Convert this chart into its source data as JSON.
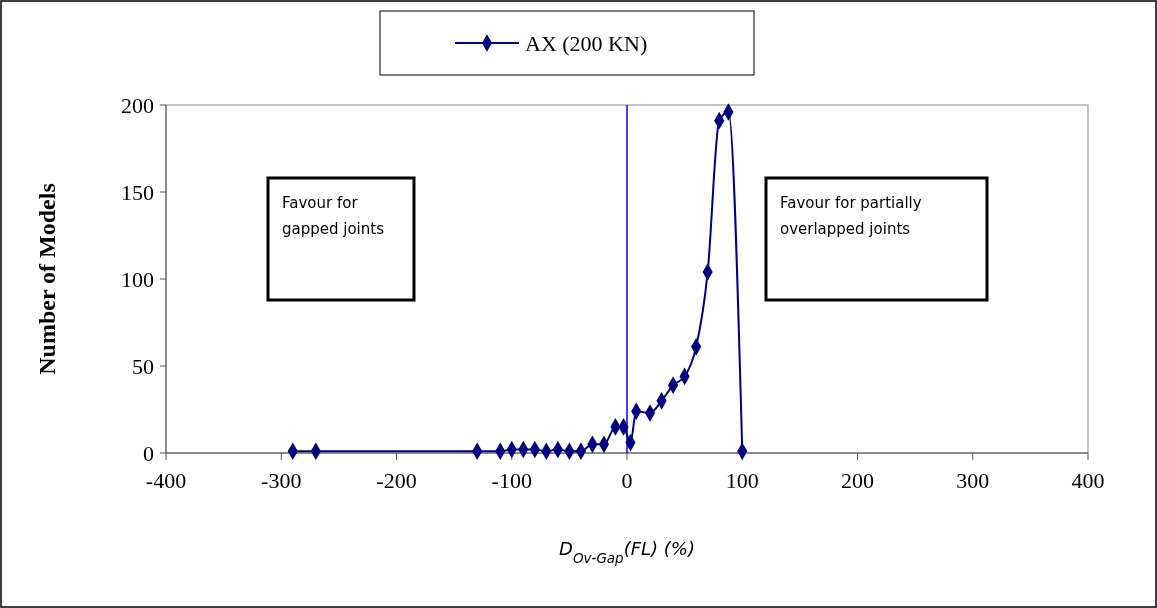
{
  "chart_data": {
    "type": "line",
    "xlabel": "D$_{Ov-Gap}$(FL) (%)",
    "ylabel": "Number of Models",
    "x": [
      -290,
      -270,
      -130,
      -110,
      -100,
      -90,
      -80,
      -70,
      -60,
      -50,
      -40,
      -30,
      -20,
      -10,
      -3,
      3,
      8,
      20,
      30,
      40,
      50,
      60,
      70,
      80,
      88,
      100
    ],
    "series": [
      {
        "name": "AX (200 KN)",
        "color": "#000080",
        "values": [
          1,
          1,
          1,
          1,
          2,
          2,
          2,
          1,
          2,
          1,
          1,
          5,
          5,
          15,
          15,
          6,
          24,
          23,
          30,
          39,
          44,
          61,
          104,
          191,
          196,
          1
        ]
      }
    ],
    "xlim": [
      -400,
      400
    ],
    "xticks": [
      -400,
      -300,
      -200,
      -100,
      0,
      100,
      200,
      300,
      400
    ],
    "ylim": [
      0,
      200
    ],
    "yticks": [
      0,
      50,
      100,
      150,
      200
    ],
    "ref_lines": [
      {
        "axis": "x",
        "value": 0,
        "color": "#0000ff"
      }
    ],
    "annotations": [
      "Favour for gapped joints",
      "Favour for partially overlapped joints"
    ],
    "grid": false,
    "legend": "top",
    "marker": "diamond",
    "line_style": "solid"
  }
}
